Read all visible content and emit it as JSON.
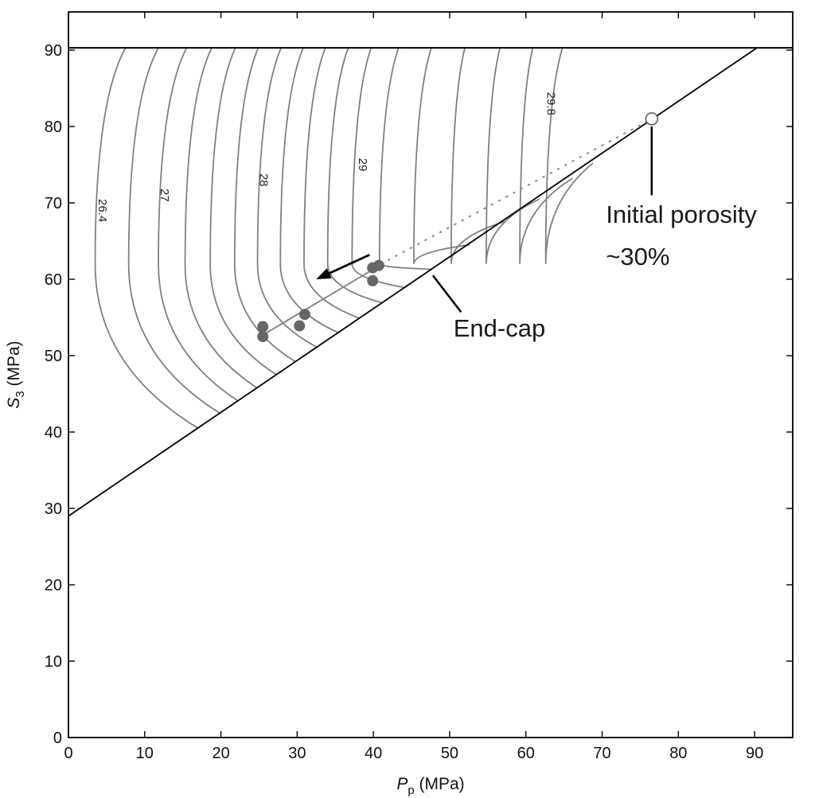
{
  "chart_data": {
    "type": "line",
    "xlabel": {
      "symbol": "P",
      "subscript": "p",
      "unit": "(MPa)"
    },
    "ylabel": {
      "symbol": "S",
      "subscript": "3",
      "unit": "(MPa)"
    },
    "xlim": [
      0,
      95
    ],
    "ylim": [
      0,
      95
    ],
    "xticks": [
      0,
      10,
      20,
      30,
      40,
      50,
      60,
      70,
      80,
      90
    ],
    "yticks": [
      0,
      10,
      20,
      30,
      40,
      50,
      60,
      70,
      80,
      90
    ],
    "grid": false,
    "colors": {
      "contour": "#808080",
      "points": "#666666",
      "line": "#000000",
      "dotted": "#888888"
    },
    "horizontal_line": {
      "y": 90.3
    },
    "end_cap_line": {
      "x": [
        0,
        90.3
      ],
      "y": [
        29,
        90.3
      ]
    },
    "initial_point": {
      "x": 76.5,
      "y": 81
    },
    "dotted_path": {
      "x": [
        41,
        76.5
      ],
      "y": [
        62,
        81
      ]
    },
    "contours": [
      {
        "x_apex": 3.5,
        "x_top": 7.5,
        "x_bottom": 17.0,
        "y_bottom": 40.5
      },
      {
        "x_apex": 7.9,
        "x_top": 11.8,
        "x_bottom": 19.8,
        "y_bottom": 42.5
      },
      {
        "x_apex": 11.8,
        "x_top": 15.5,
        "x_bottom": 22.2,
        "y_bottom": 44.1
      },
      {
        "x_apex": 15.3,
        "x_top": 18.8,
        "x_bottom": 24.7,
        "y_bottom": 45.8
      },
      {
        "x_apex": 18.6,
        "x_top": 21.9,
        "x_bottom": 27.3,
        "y_bottom": 47.5
      },
      {
        "x_apex": 21.8,
        "x_top": 24.9,
        "x_bottom": 29.8,
        "y_bottom": 49.2
      },
      {
        "x_apex": 24.8,
        "x_top": 27.9,
        "x_bottom": 32.6,
        "y_bottom": 51.1
      },
      {
        "x_apex": 27.8,
        "x_top": 30.8,
        "x_bottom": 35.4,
        "y_bottom": 53.0
      },
      {
        "x_apex": 30.9,
        "x_top": 33.7,
        "x_bottom": 38.2,
        "y_bottom": 54.9
      },
      {
        "x_apex": 34.0,
        "x_top": 36.7,
        "x_bottom": 41.2,
        "y_bottom": 56.9
      },
      {
        "x_apex": 37.2,
        "x_top": 39.7,
        "x_bottom": 44.2,
        "y_bottom": 58.9
      },
      {
        "x_apex": 40.8,
        "x_top": 43.3,
        "x_bottom": 47.7,
        "y_bottom": 61.3
      },
      {
        "x_apex": 45.3,
        "x_top": 47.6,
        "x_bottom": 52.6,
        "y_bottom": 64.5
      },
      {
        "x_apex": 50.2,
        "x_top": 52.0,
        "x_bottom": 57.4,
        "y_bottom": 67.6
      },
      {
        "x_apex": 54.8,
        "x_top": 56.6,
        "x_bottom": 61.8,
        "y_bottom": 70.5
      },
      {
        "x_apex": 59.2,
        "x_top": 60.9,
        "x_bottom": 66.1,
        "y_bottom": 73.2
      },
      {
        "x_apex": 62.6,
        "x_top": 64.8,
        "x_bottom": 68.8,
        "y_bottom": 75.2
      }
    ],
    "contour_labels": [
      {
        "text": "26.4",
        "x": 4.4,
        "y": 69
      },
      {
        "text": "27",
        "x": 12.5,
        "y": 71
      },
      {
        "text": "28",
        "x": 25.5,
        "y": 73
      },
      {
        "text": "29",
        "x": 38.5,
        "y": 75
      },
      {
        "text": "29.8",
        "x": 63.2,
        "y": 83
      }
    ],
    "data_points": [
      {
        "x": 25.5,
        "y": 53.8
      },
      {
        "x": 25.5,
        "y": 52.5
      },
      {
        "x": 30.3,
        "y": 53.9
      },
      {
        "x": 31.0,
        "y": 55.4
      },
      {
        "x": 39.9,
        "y": 61.5
      },
      {
        "x": 40.7,
        "y": 61.8
      },
      {
        "x": 39.9,
        "y": 59.8
      }
    ],
    "trend_line": {
      "x": [
        26.0,
        40.3
      ],
      "y": [
        53.0,
        61.5
      ]
    },
    "arrow": {
      "from": [
        39.5,
        63.2
      ],
      "to": [
        32.5,
        60.0
      ]
    },
    "annotations": [
      {
        "text": "Initial porosity",
        "x": 70.5,
        "y": 67.4
      },
      {
        "text": "~30%",
        "x": 70.5,
        "y": 61.9
      },
      {
        "text": "End-cap",
        "x": 50.5,
        "y": 52.5
      }
    ],
    "annotation_lines": [
      {
        "x": [
          76.5,
          76.5
        ],
        "y": [
          80,
          71
        ]
      },
      {
        "x": [
          47.8,
          51.5
        ],
        "y": [
          60.5,
          55.7
        ]
      }
    ]
  }
}
